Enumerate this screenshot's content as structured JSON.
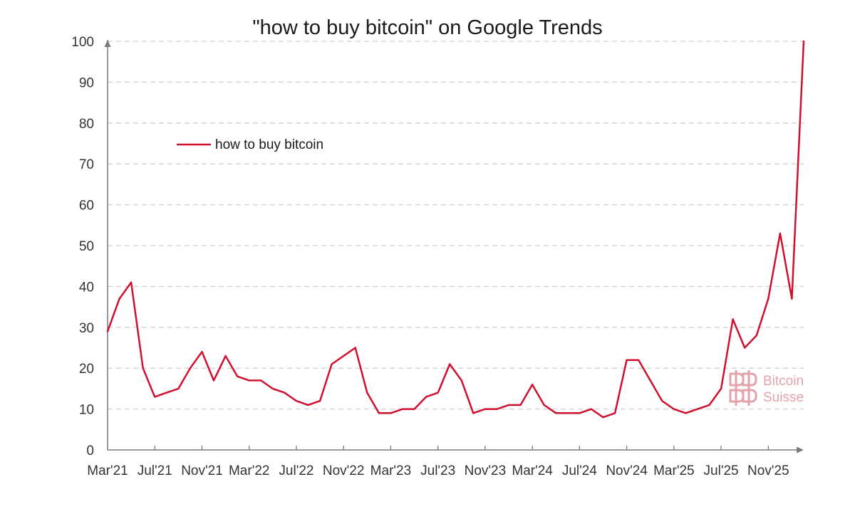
{
  "chart_data": {
    "type": "line",
    "title": "\"how to buy bitcoin\" on Google Trends",
    "xlabel": "",
    "ylabel": "",
    "ylim": [
      0,
      100
    ],
    "yticks": [
      0,
      10,
      20,
      30,
      40,
      50,
      60,
      70,
      80,
      90,
      100
    ],
    "grid": "horizontal dashed",
    "legend_position": "top-left",
    "xtick_labels": [
      {
        "label": "Mar'21",
        "index": 0
      },
      {
        "label": "Jul'21",
        "index": 4
      },
      {
        "label": "Nov'21",
        "index": 8
      },
      {
        "label": "Mar'22",
        "index": 12
      },
      {
        "label": "Jul'22",
        "index": 16
      },
      {
        "label": "Nov'22",
        "index": 20
      },
      {
        "label": "Mar'23",
        "index": 24
      },
      {
        "label": "Jul'23",
        "index": 28
      },
      {
        "label": "Nov'23",
        "index": 32
      },
      {
        "label": "Mar'24",
        "index": 36
      },
      {
        "label": "Jul'24",
        "index": 40
      },
      {
        "label": "Nov'24",
        "index": 44
      },
      {
        "label": "Mar'25",
        "index": 48
      },
      {
        "label": "Jul'25",
        "index": 52
      },
      {
        "label": "Nov'25",
        "index": 56
      }
    ],
    "series": [
      {
        "name": "how to buy bitcoin",
        "color": "#d0102e",
        "values": [
          29,
          37,
          41,
          20,
          13,
          14,
          15,
          20,
          24,
          17,
          23,
          18,
          17,
          17,
          15,
          14,
          12,
          11,
          12,
          21,
          23,
          25,
          14,
          9,
          9,
          10,
          10,
          13,
          14,
          21,
          17,
          9,
          10,
          10,
          11,
          11,
          16,
          11,
          9,
          9,
          9,
          10,
          8,
          9,
          22,
          22,
          17,
          12,
          10,
          9,
          10,
          11,
          15,
          32,
          25,
          28,
          37,
          53,
          37,
          100
        ]
      }
    ]
  },
  "watermark": {
    "line1": "Bitcoin",
    "line2": "Suisse",
    "color": "#e3a3ad"
  },
  "colors": {
    "axis": "#7a7a7a",
    "grid": "#d0d0d0"
  }
}
